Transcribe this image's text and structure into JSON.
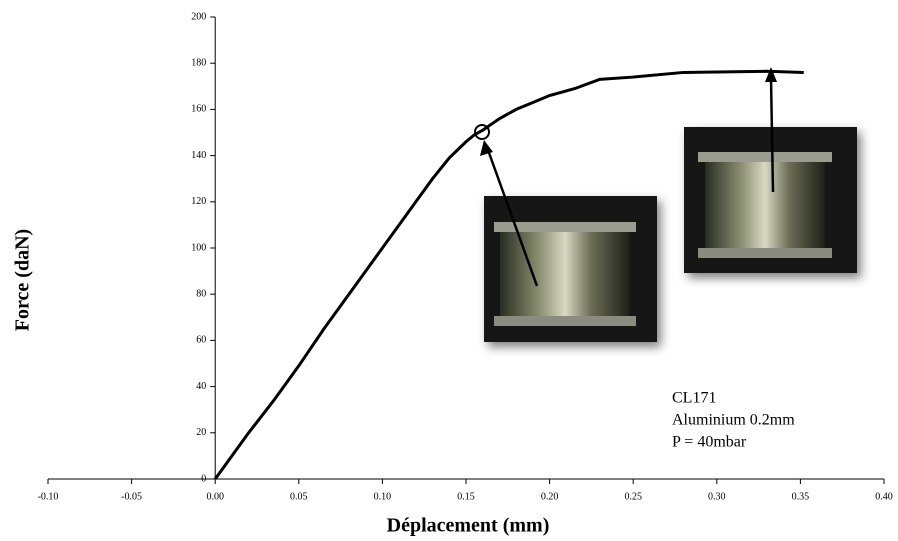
{
  "chart_data": {
    "type": "line",
    "x_label": "Déplacement (mm)",
    "y_label": "Force (daN)",
    "x": [
      0,
      0.01,
      0.02,
      0.035,
      0.05,
      0.065,
      0.08,
      0.09,
      0.1,
      0.11,
      0.12,
      0.13,
      0.14,
      0.15,
      0.155,
      0.16,
      0.17,
      0.18,
      0.19,
      0.2,
      0.215,
      0.23,
      0.25,
      0.28,
      0.3,
      0.33,
      0.352
    ],
    "values": [
      0,
      10,
      20,
      34,
      49,
      65,
      80,
      90,
      100,
      110,
      120,
      130,
      139,
      146,
      149,
      151,
      156,
      160,
      163,
      166,
      169,
      173,
      174,
      176,
      176.2,
      176.5,
      176
    ],
    "color": "#000000",
    "xlim": [
      -0.1,
      0.4
    ],
    "xticks": [
      {
        "value": -0.1,
        "label": "-0.10"
      },
      {
        "value": -0.05,
        "label": "-0.05"
      },
      {
        "value": 0,
        "label": "0.00"
      },
      {
        "value": 0.05,
        "label": "0.05"
      },
      {
        "value": 0.1,
        "label": "0.10"
      },
      {
        "value": 0.15,
        "label": "0.15"
      },
      {
        "value": 0.2,
        "label": "0.20"
      },
      {
        "value": 0.25,
        "label": "0.25"
      },
      {
        "value": 0.3,
        "label": "0.30"
      },
      {
        "value": 0.35,
        "label": "0.35"
      },
      {
        "value": 0.4,
        "label": "0.40"
      }
    ],
    "ylim": [
      0,
      200
    ],
    "yticks": [
      0,
      20,
      40,
      60,
      80,
      100,
      120,
      140,
      160,
      180,
      200
    ],
    "annotation": [
      "CL171",
      "Aluminium 0.2mm",
      "P = 40mbar"
    ]
  }
}
